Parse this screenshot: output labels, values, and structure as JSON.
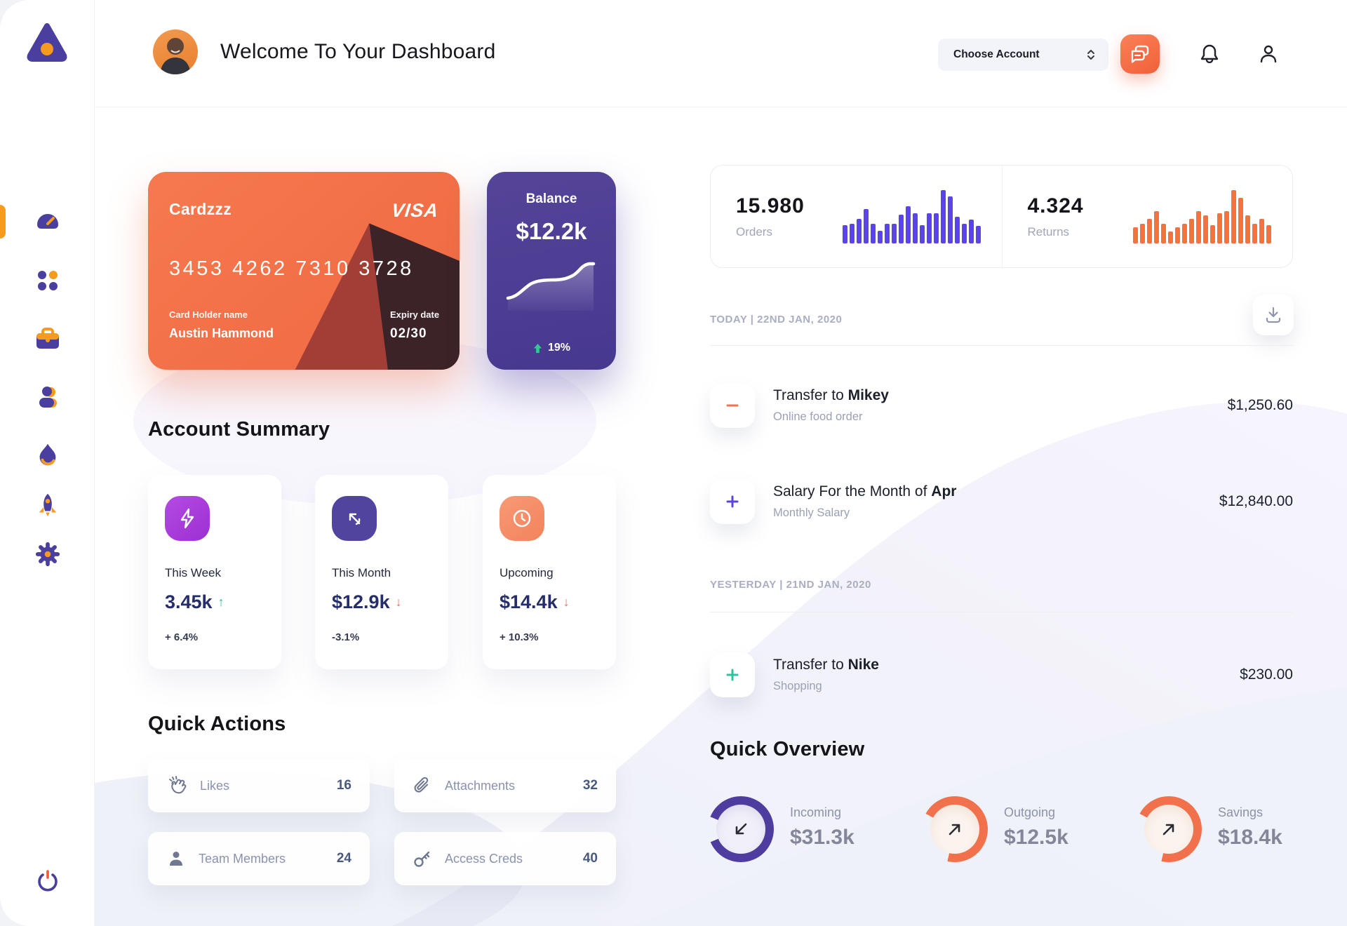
{
  "app": {
    "title": "Welcome To Your Dashboard"
  },
  "header": {
    "account_select_label": "Choose Account",
    "icons": [
      "chat-icon",
      "bell-icon",
      "user-icon"
    ]
  },
  "sidebar": {
    "items": [
      "dashboard-speedometer",
      "apps-grid",
      "briefcase",
      "users",
      "flame",
      "rocket",
      "settings-gear"
    ],
    "active_item": "dashboard-speedometer",
    "footer_item": "power",
    "accent_color": "#F79B1E",
    "icon_color": "#4a3f9f"
  },
  "card": {
    "name": "Cardzzz",
    "brand": "VISA",
    "number": "3453 4262 7310 3728",
    "holder_label": "Card Holder name",
    "holder_value": "Austin Hammond",
    "expiry_label": "Expiry date",
    "expiry_value": "02/30",
    "color": "#f0663f"
  },
  "balance": {
    "label": "Balance",
    "value": "$12.2k",
    "change": "19%",
    "color": "#4e3d9e"
  },
  "stats": {
    "orders": {
      "value": "15.980",
      "label": "Orders"
    },
    "returns": {
      "value": "4.324",
      "label": "Returns"
    }
  },
  "charts": {
    "orders": {
      "type": "bar",
      "color": "#5a43e8",
      "values": [
        33,
        36,
        46,
        64,
        36,
        23,
        36,
        36,
        53,
        69,
        56,
        34,
        56,
        56,
        100,
        88,
        49,
        36,
        44,
        32
      ]
    },
    "returns": {
      "type": "bar",
      "color": "#f4723d",
      "values": [
        30,
        36,
        46,
        60,
        36,
        22,
        30,
        36,
        46,
        60,
        52,
        34,
        56,
        60,
        100,
        85,
        52,
        36,
        46,
        34
      ]
    },
    "balance_sparkline": {
      "type": "line",
      "trend": "rising",
      "values": [
        20,
        22,
        34,
        46,
        50,
        50,
        50,
        52,
        58,
        76,
        79,
        79
      ]
    }
  },
  "account_summary": {
    "heading": "Account Summary",
    "cards": [
      {
        "icon": "lightning-icon",
        "icon_color": "#a93bdb",
        "label": "This Week",
        "value": "3.45k",
        "arrow": "↑",
        "trend": "up",
        "change": "+ 6.4%"
      },
      {
        "icon": "arrow-up-left-icon",
        "icon_color": "#50449e",
        "label": "This Month",
        "value": "$12.9k",
        "arrow": "↓",
        "trend": "down",
        "change": "-3.1%"
      },
      {
        "icon": "clock-icon",
        "icon_color": "#f48b68",
        "label": "Upcoming",
        "value": "$14.4k",
        "arrow": "↓",
        "trend": "down",
        "change": "+ 10.3%"
      }
    ]
  },
  "quick_actions": {
    "heading": "Quick Actions",
    "items": [
      {
        "icon": "clap-icon",
        "label": "Likes",
        "count": "16"
      },
      {
        "icon": "paperclip-icon",
        "label": "Attachments",
        "count": "32"
      },
      {
        "icon": "person-icon",
        "label": "Team Members",
        "count": "24"
      },
      {
        "icon": "key-icon",
        "label": "Access Creds",
        "count": "40"
      }
    ]
  },
  "transactions": {
    "download_icon": "download-icon",
    "groups": [
      {
        "label": "TODAY | 22ND JAN, 2020"
      },
      {
        "label": "YESTERDAY | 21ND JAN, 2020"
      }
    ],
    "rows": [
      {
        "icon": "minus-icon",
        "icon_color": "#f2734d",
        "title_prefix": "Transfer to ",
        "title_bold": "Mikey",
        "subtitle": "Online food order",
        "amount": "$1,250.60"
      },
      {
        "icon": "plus-icon",
        "icon_color": "#5b45e0",
        "title_prefix": "Salary For the Month of ",
        "title_bold": "Apr",
        "subtitle": "Monthly Salary",
        "amount": "$12,840.00"
      },
      {
        "icon": "plus-icon",
        "icon_color": "#2fc39c",
        "title_prefix": "Transfer to ",
        "title_bold": "Nike",
        "subtitle": "Shopping",
        "amount": "$230.00"
      }
    ]
  },
  "quick_overview": {
    "heading": "Quick Overview",
    "items": [
      {
        "label": "Incoming",
        "value": "$31.3k",
        "arrow": "down-left-arrow-icon",
        "ring_color": "#4e3d9e",
        "ring_from_deg": 292,
        "ring_sweep_deg": 315
      },
      {
        "label": "Outgoing",
        "value": "$12.5k",
        "arrow": "up-right-arrow-icon",
        "ring_color": "#f2714d",
        "ring_from_deg": 298,
        "ring_sweep_deg": 255
      },
      {
        "label": "Savings",
        "value": "$18.4k",
        "arrow": "up-right-arrow-icon",
        "ring_color": "#f2714d",
        "ring_from_deg": 298,
        "ring_sweep_deg": 255
      }
    ]
  }
}
